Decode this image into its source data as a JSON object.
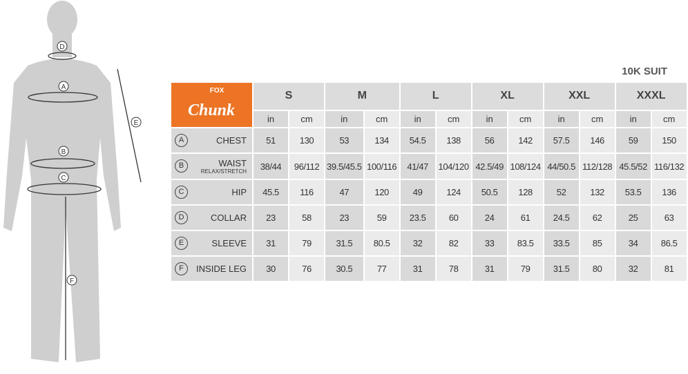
{
  "title": "10K SUIT",
  "logo": {
    "brand": "FOX",
    "name": "Chunk",
    "color": "#ec7424"
  },
  "sizes": [
    "S",
    "M",
    "L",
    "XL",
    "XXL",
    "XXXL"
  ],
  "units": [
    "in",
    "cm"
  ],
  "rows": [
    {
      "key": "A",
      "label": "CHEST",
      "sub": "",
      "values": [
        "51",
        "130",
        "53",
        "134",
        "54.5",
        "138",
        "56",
        "142",
        "57.5",
        "146",
        "59",
        "150"
      ]
    },
    {
      "key": "B",
      "label": "WAIST",
      "sub": "RELAX/STRETCH",
      "values": [
        "38/44",
        "96/112",
        "39.5/45.5",
        "100/116",
        "41/47",
        "104/120",
        "42.5/49",
        "108/124",
        "44/50.5",
        "112/128",
        "45.5/52",
        "116/132"
      ]
    },
    {
      "key": "C",
      "label": "HIP",
      "sub": "",
      "values": [
        "45.5",
        "116",
        "47",
        "120",
        "49",
        "124",
        "50.5",
        "128",
        "52",
        "132",
        "53.5",
        "136"
      ]
    },
    {
      "key": "D",
      "label": "COLLAR",
      "sub": "",
      "values": [
        "23",
        "58",
        "23",
        "59",
        "23.5",
        "60",
        "24",
        "61",
        "24.5",
        "62",
        "25",
        "63"
      ]
    },
    {
      "key": "E",
      "label": "SLEEVE",
      "sub": "",
      "values": [
        "31",
        "79",
        "31.5",
        "80.5",
        "32",
        "82",
        "33",
        "83.5",
        "33.5",
        "85",
        "34",
        "86.5"
      ]
    },
    {
      "key": "F",
      "label": "INSIDE LEG",
      "sub": "",
      "values": [
        "30",
        "76",
        "30.5",
        "77",
        "31",
        "78",
        "31",
        "79",
        "31.5",
        "80",
        "32",
        "81"
      ]
    }
  ],
  "figure_labels": [
    "A",
    "B",
    "C",
    "D",
    "E",
    "F"
  ]
}
